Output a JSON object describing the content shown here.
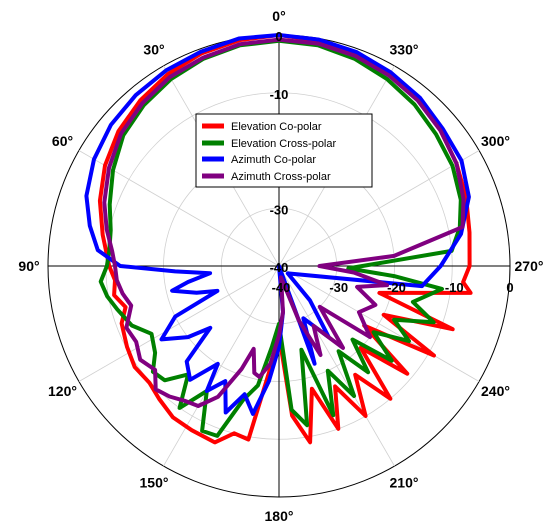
{
  "chart_data": {
    "type": "polar-line",
    "angle_direction": "counterclockwise",
    "zero_at": "top",
    "angle_tick_labels": [
      "0°",
      "30°",
      "60°",
      "90°",
      "120°",
      "150°",
      "180°",
      "210°",
      "240°",
      "270°",
      "300°",
      "330°"
    ],
    "angle_ticks_deg": [
      0,
      30,
      60,
      90,
      120,
      150,
      180,
      210,
      240,
      270,
      300,
      330
    ],
    "radial_range": [
      -40,
      0
    ],
    "radial_ticks": [
      -40,
      -30,
      -20,
      -10,
      0
    ],
    "radial_tick_labels_top": [
      "0",
      "-10",
      "-20",
      "-30",
      "-40"
    ],
    "radial_tick_labels_right": [
      "-40",
      "-30",
      "-20",
      "-10",
      "0"
    ],
    "grid": true,
    "legend_position": "upper-center",
    "series": [
      {
        "name": "Elevation Co-polar",
        "color": "#ff0000",
        "points": [
          [
            0,
            0
          ],
          [
            10,
            -0.3
          ],
          [
            20,
            -0.8
          ],
          [
            30,
            -1.6
          ],
          [
            40,
            -2.6
          ],
          [
            50,
            -3.7
          ],
          [
            60,
            -5.2
          ],
          [
            70,
            -7.0
          ],
          [
            80,
            -9.0
          ],
          [
            90,
            -10.6
          ],
          [
            95,
            -11.5
          ],
          [
            100,
            -11.0
          ],
          [
            105,
            -12.5
          ],
          [
            110,
            -11.0
          ],
          [
            118,
            -10.2
          ],
          [
            125,
            -9.5
          ],
          [
            132,
            -9.8
          ],
          [
            138,
            -9.0
          ],
          [
            145,
            -8.0
          ],
          [
            152,
            -7.8
          ],
          [
            160,
            -7.5
          ],
          [
            165,
            -10.0
          ],
          [
            170,
            -9.5
          ],
          [
            175,
            -22.0
          ],
          [
            180,
            -28.0
          ],
          [
            185,
            -14.0
          ],
          [
            190,
            -9.0
          ],
          [
            195,
            -18.0
          ],
          [
            200,
            -10.0
          ],
          [
            205,
            -17.0
          ],
          [
            210,
            -10.0
          ],
          [
            215,
            -17.0
          ],
          [
            220,
            -10.0
          ],
          [
            225,
            -20.0
          ],
          [
            230,
            -11.0
          ],
          [
            235,
            -22.0
          ],
          [
            240,
            -9.0
          ],
          [
            245,
            -20.0
          ],
          [
            250,
            -8.0
          ],
          [
            255,
            -22.0
          ],
          [
            262,
            -6.5
          ],
          [
            265,
            -8.0
          ],
          [
            270,
            -7.0
          ],
          [
            280,
            -6.5
          ],
          [
            290,
            -5.5
          ],
          [
            300,
            -4.5
          ],
          [
            310,
            -3.5
          ],
          [
            320,
            -2.5
          ],
          [
            330,
            -1.6
          ],
          [
            340,
            -0.9
          ],
          [
            350,
            -0.4
          ],
          [
            360,
            0
          ]
        ]
      },
      {
        "name": "Elevation Cross-polar",
        "color": "#008000",
        "points": [
          [
            0,
            -1.0
          ],
          [
            10,
            -1.2
          ],
          [
            20,
            -1.8
          ],
          [
            30,
            -2.6
          ],
          [
            40,
            -3.6
          ],
          [
            50,
            -4.8
          ],
          [
            60,
            -6.8
          ],
          [
            70,
            -8.8
          ],
          [
            78,
            -10.2
          ],
          [
            85,
            -10.5
          ],
          [
            90,
            -10.2
          ],
          [
            95,
            -9.0
          ],
          [
            100,
            -9.8
          ],
          [
            105,
            -11.0
          ],
          [
            112,
            -12.5
          ],
          [
            118,
            -15.0
          ],
          [
            125,
            -13.8
          ],
          [
            130,
            -11.5
          ],
          [
            135,
            -12.0
          ],
          [
            140,
            -15.5
          ],
          [
            145,
            -10.0
          ],
          [
            150,
            -15.0
          ],
          [
            155,
            -8.5
          ],
          [
            160,
            -8.7
          ],
          [
            165,
            -16.0
          ],
          [
            170,
            -19.0
          ],
          [
            175,
            -26.0
          ],
          [
            180,
            -30.0
          ],
          [
            185,
            -15.0
          ],
          [
            190,
            -12.0
          ],
          [
            195,
            -25.0
          ],
          [
            200,
            -12.5
          ],
          [
            205,
            -20.0
          ],
          [
            210,
            -14.0
          ],
          [
            215,
            -22.0
          ],
          [
            220,
            -16.0
          ],
          [
            225,
            -22.0
          ],
          [
            230,
            -14.5
          ],
          [
            235,
            -20.0
          ],
          [
            240,
            -14.0
          ],
          [
            245,
            -18.0
          ],
          [
            250,
            -11.5
          ],
          [
            255,
            -16.0
          ],
          [
            262,
            -11.5
          ],
          [
            265,
            -20.0
          ],
          [
            268,
            -28.0
          ],
          [
            275,
            -10.0
          ],
          [
            282,
            -8.0
          ],
          [
            290,
            -6.5
          ],
          [
            300,
            -5.3
          ],
          [
            310,
            -4.5
          ],
          [
            320,
            -3.5
          ],
          [
            330,
            -2.6
          ],
          [
            340,
            -1.8
          ],
          [
            350,
            -1.2
          ],
          [
            360,
            -1.0
          ]
        ]
      },
      {
        "name": "Azimuth Co-polar",
        "color": "#0000ff",
        "points": [
          [
            0,
            0
          ],
          [
            10,
            0
          ],
          [
            20,
            -0.5
          ],
          [
            30,
            -0.9
          ],
          [
            40,
            -1.4
          ],
          [
            50,
            -2.0
          ],
          [
            60,
            -3.0
          ],
          [
            70,
            -4.5
          ],
          [
            78,
            -6.5
          ],
          [
            85,
            -8.5
          ],
          [
            90,
            -12.5
          ],
          [
            93,
            -22.0
          ],
          [
            96,
            -28.0
          ],
          [
            100,
            -24.0
          ],
          [
            103,
            -21.0
          ],
          [
            108,
            -25.0
          ],
          [
            112,
            -28.5
          ],
          [
            116,
            -20.0
          ],
          [
            122,
            -16.0
          ],
          [
            128,
            -20.0
          ],
          [
            132,
            -24.0
          ],
          [
            136,
            -17.0
          ],
          [
            142,
            -15.0
          ],
          [
            148,
            -20.0
          ],
          [
            150,
            -15.0
          ],
          [
            155,
            -18.0
          ],
          [
            160,
            -13.0
          ],
          [
            165,
            -17.0
          ],
          [
            170,
            -14.0
          ],
          [
            175,
            -20.0
          ],
          [
            180,
            -26.0
          ],
          [
            185,
            -32.0
          ],
          [
            190,
            -40.0
          ],
          [
            200,
            -22.0
          ],
          [
            205,
            -30.0
          ],
          [
            215,
            -25.0
          ],
          [
            222,
            -32.0
          ],
          [
            230,
            -38.0
          ],
          [
            262,
            -15.0
          ],
          [
            270,
            -12.0
          ],
          [
            280,
            -8.0
          ],
          [
            290,
            -5.0
          ],
          [
            300,
            -3.5
          ],
          [
            310,
            -3.0
          ],
          [
            320,
            -2.0
          ],
          [
            330,
            -1.3
          ],
          [
            340,
            -0.6
          ],
          [
            350,
            -0.2
          ],
          [
            360,
            0
          ]
        ]
      },
      {
        "name": "Azimuth Cross-polar",
        "color": "#800080",
        "points": [
          [
            0,
            -0.8
          ],
          [
            10,
            -1.0
          ],
          [
            20,
            -1.6
          ],
          [
            30,
            -2.2
          ],
          [
            40,
            -3.2
          ],
          [
            50,
            -4.3
          ],
          [
            60,
            -6.0
          ],
          [
            70,
            -7.8
          ],
          [
            78,
            -9.5
          ],
          [
            85,
            -11.0
          ],
          [
            90,
            -11.6
          ],
          [
            95,
            -11.8
          ],
          [
            100,
            -12.5
          ],
          [
            105,
            -13.5
          ],
          [
            112,
            -11.5
          ],
          [
            118,
            -12.0
          ],
          [
            124,
            -11.0
          ],
          [
            130,
            -12.0
          ],
          [
            135,
            -9.8
          ],
          [
            140,
            -10.5
          ],
          [
            145,
            -11.5
          ],
          [
            150,
            -12.0
          ],
          [
            155,
            -15.0
          ],
          [
            160,
            -21.0
          ],
          [
            163,
            -25.0
          ],
          [
            167,
            -21.0
          ],
          [
            170,
            -20.5
          ],
          [
            175,
            -23.0
          ],
          [
            180,
            -28.0
          ],
          [
            185,
            -32.0
          ],
          [
            190,
            -38.0
          ],
          [
            200,
            -30.0
          ],
          [
            205,
            -23.0
          ],
          [
            210,
            -28.0
          ],
          [
            218,
            -22.0
          ],
          [
            225,
            -30.0
          ],
          [
            232,
            -20.0
          ],
          [
            240,
            -24.0
          ],
          [
            248,
            -22.0
          ],
          [
            255,
            -26.0
          ],
          [
            260,
            -21.0
          ],
          [
            265,
            -27.0
          ],
          [
            270,
            -33.0
          ],
          [
            275,
            -20.0
          ],
          [
            282,
            -7.5
          ],
          [
            290,
            -6.0
          ],
          [
            300,
            -4.5
          ],
          [
            310,
            -3.5
          ],
          [
            320,
            -2.6
          ],
          [
            330,
            -1.9
          ],
          [
            340,
            -1.3
          ],
          [
            350,
            -0.9
          ],
          [
            360,
            -0.8
          ]
        ]
      }
    ]
  }
}
